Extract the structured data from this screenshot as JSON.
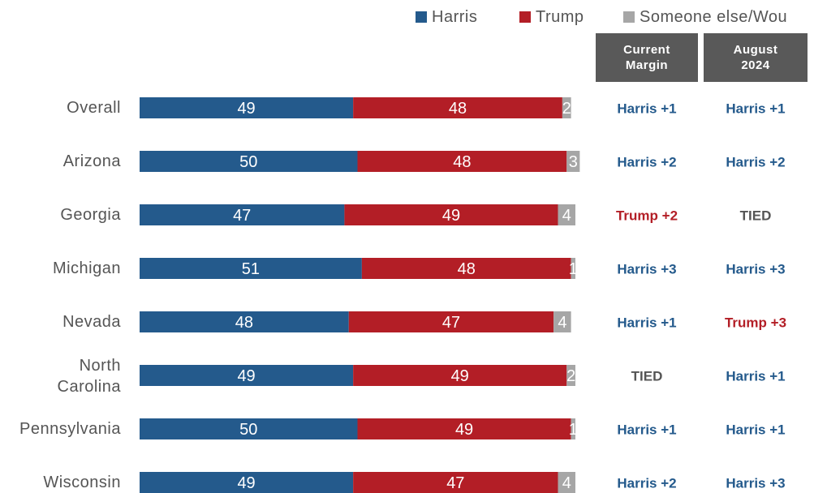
{
  "legend": [
    {
      "label": "Harris",
      "color": "#245a8c"
    },
    {
      "label": "Trump",
      "color": "#b31e26"
    },
    {
      "label": "Someone else/Wou",
      "color": "#a6a6a6"
    }
  ],
  "columns": {
    "current": {
      "line1": "Current",
      "line2": "Margin"
    },
    "august": {
      "line1": "August",
      "line2": "2024"
    }
  },
  "colors": {
    "harris": "#245a8c",
    "trump": "#b31e26",
    "other": "#a6a6a6",
    "tied": "#555555"
  },
  "chart_data": {
    "type": "bar",
    "orientation": "horizontal",
    "stacked": true,
    "categories": [
      [
        "Overall"
      ],
      [
        "Arizona"
      ],
      [
        "Georgia"
      ],
      [
        "Michigan"
      ],
      [
        "Nevada"
      ],
      [
        "North",
        "Carolina"
      ],
      [
        "Pennsylvania"
      ],
      [
        "Wisconsin"
      ]
    ],
    "series": [
      {
        "name": "Harris",
        "color": "#245a8c",
        "values": [
          49,
          50,
          47,
          51,
          48,
          49,
          50,
          49
        ]
      },
      {
        "name": "Trump",
        "color": "#b31e26",
        "values": [
          48,
          48,
          49,
          48,
          47,
          49,
          49,
          47
        ]
      },
      {
        "name": "Someone else/Wou",
        "color": "#a6a6a6",
        "values": [
          2,
          3,
          4,
          1,
          4,
          2,
          1,
          4
        ]
      }
    ],
    "current_margin": [
      {
        "text": "Harris +1",
        "party": "harris"
      },
      {
        "text": "Harris +2",
        "party": "harris"
      },
      {
        "text": "Trump +2",
        "party": "trump"
      },
      {
        "text": "Harris +3",
        "party": "harris"
      },
      {
        "text": "Harris +1",
        "party": "harris"
      },
      {
        "text": "TIED",
        "party": "tied"
      },
      {
        "text": "Harris +1",
        "party": "harris"
      },
      {
        "text": "Harris +2",
        "party": "harris"
      }
    ],
    "august_2024": [
      {
        "text": "Harris +1",
        "party": "harris"
      },
      {
        "text": "Harris +2",
        "party": "harris"
      },
      {
        "text": "TIED",
        "party": "tied"
      },
      {
        "text": "Harris +3",
        "party": "harris"
      },
      {
        "text": "Trump +3",
        "party": "trump"
      },
      {
        "text": "Harris +1",
        "party": "harris"
      },
      {
        "text": "Harris +1",
        "party": "harris"
      },
      {
        "text": "Harris +3",
        "party": "harris"
      }
    ]
  }
}
